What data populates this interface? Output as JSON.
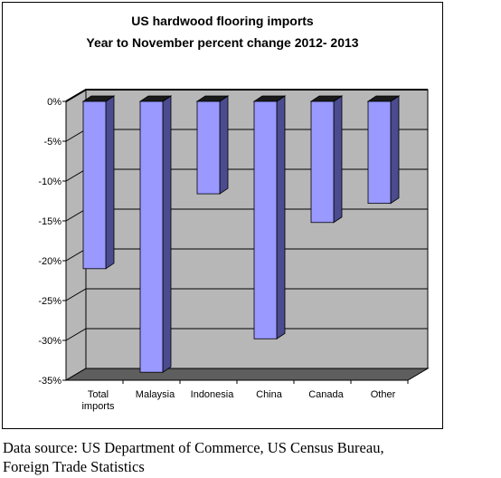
{
  "chart_data": {
    "type": "bar",
    "title": "US hardwood flooring imports",
    "subtitle": "Year to November percent change 2012- 2013",
    "categories": [
      [
        "Total",
        "imports"
      ],
      [
        "Malaysia"
      ],
      [
        "Indonesia"
      ],
      [
        "China"
      ],
      [
        "Canada"
      ],
      [
        "Other"
      ]
    ],
    "values": [
      -21,
      -34,
      -11.6,
      -29.8,
      -15.2,
      -12.8
    ],
    "ylim": [
      -35,
      0
    ],
    "yticks": [
      0,
      -5,
      -10,
      -15,
      -20,
      -25,
      -30,
      -35
    ],
    "ytick_labels": [
      "0%",
      "-5%",
      "-10%",
      "-15%",
      "-20%",
      "-25%",
      "-30%",
      "-35%"
    ],
    "grid": true,
    "legend": "none",
    "colors": {
      "bar_front": "#9999ff",
      "bar_side": "#4b4b8f",
      "bar_top": "#1a1a1a",
      "wall": "#b7b7b7",
      "floor": "#5e5e5e",
      "gridline": "#000000"
    }
  },
  "source": {
    "line1": "Data source: US Department of Commerce, US Census Bureau,",
    "line2": "Foreign Trade Statistics"
  }
}
